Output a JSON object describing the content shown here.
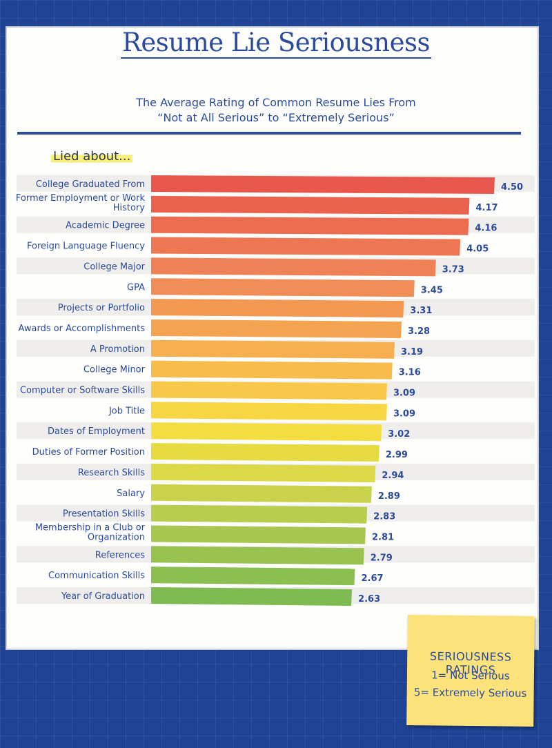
{
  "header": {
    "title": "Resume Lie Seriousness",
    "subtitle_line1": "The Average Rating of Common Resume Lies From",
    "subtitle_line2": "“Not at All Serious” to “Extremely Serious”",
    "category_heading": "Lied about..."
  },
  "note": {
    "heading": "SERIOUSNESS RATINGS",
    "line1": "1= Not Serious",
    "line2": "5= Extremely Serious"
  },
  "colors": {
    "accent": "#2b4a9a",
    "bar_high": "#e8574b",
    "bar_mid": "#f7dc3e",
    "bar_low": "#7dbb51",
    "row_stripe": "#efeeec",
    "note_yellow": "#fbe27a"
  },
  "chart_data": {
    "type": "bar",
    "orientation": "horizontal",
    "categories": [
      "College Graduated From",
      "Former Employment or Work History",
      "Academic Degree",
      "Foreign Language Fluency",
      "College Major",
      "GPA",
      "Projects or Portfolio",
      "Awards or Accomplishments",
      "A Promotion",
      "College Minor",
      "Computer or Software Skills",
      "Job Title",
      "Dates of Employment",
      "Duties of Former Position",
      "Research Skills",
      "Salary",
      "Presentation Skills",
      "Membership in a Club or Organization",
      "References",
      "Communication Skills",
      "Year of Graduation"
    ],
    "values": [
      4.5,
      4.17,
      4.16,
      4.05,
      3.73,
      3.45,
      3.31,
      3.28,
      3.19,
      3.16,
      3.09,
      3.09,
      3.02,
      2.99,
      2.94,
      2.89,
      2.83,
      2.81,
      2.79,
      2.67,
      2.63
    ],
    "value_labels": [
      "4.50",
      "4.17",
      "4.16",
      "4.05",
      "3.73",
      "3.45",
      "3.31",
      "3.28",
      "3.19",
      "3.16",
      "3.09",
      "3.09",
      "3.02",
      "2.99",
      "2.94",
      "2.89",
      "2.83",
      "2.81",
      "2.79",
      "2.67",
      "2.63"
    ],
    "xlim": [
      0,
      4.5
    ],
    "title": "Resume Lie Seriousness",
    "xlabel": "",
    "ylabel": "Lied about...",
    "grid": false,
    "legend": "none"
  }
}
